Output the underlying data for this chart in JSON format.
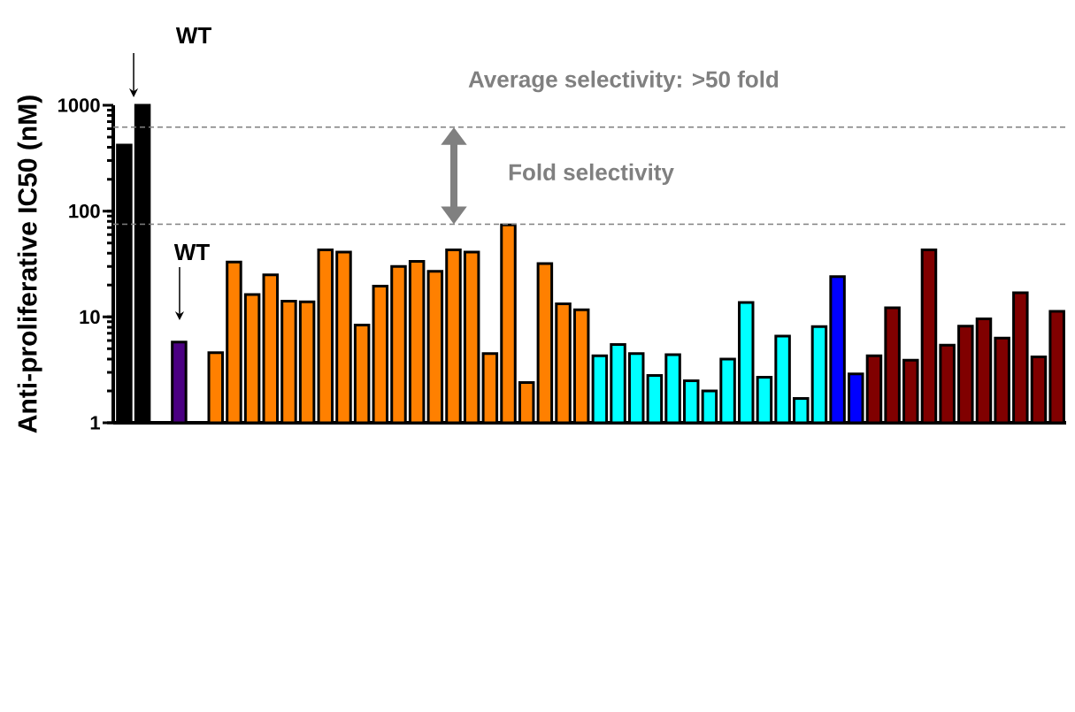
{
  "chart_data": {
    "type": "bar",
    "ylabel": "Anti-proliferative IC50 (nM)",
    "categories": [
      null,
      null,
      null,
      null,
      null,
      null,
      null,
      null,
      null,
      null,
      null,
      null,
      null,
      null,
      null,
      null,
      null,
      null,
      null,
      null,
      null,
      null,
      null,
      null,
      null,
      null,
      null,
      null,
      null,
      null,
      null,
      null,
      null,
      null,
      null,
      null,
      null,
      null,
      null,
      null,
      null,
      null,
      null,
      null,
      null,
      null,
      null,
      null,
      null,
      null,
      null,
      null
    ],
    "values": [
      420,
      1000,
      null,
      5.8,
      null,
      4.6,
      33,
      16.3,
      25,
      14.1,
      13.9,
      43,
      41,
      8.4,
      19.5,
      30,
      33.5,
      27,
      43,
      41,
      4.5,
      74,
      2.4,
      32,
      13.3,
      11.7,
      4.3,
      5.5,
      4.5,
      2.8,
      4.4,
      2.5,
      2,
      4,
      13.7,
      2.7,
      6.6,
      1.7,
      8.1,
      24,
      2.9,
      4.3,
      12.2,
      3.9,
      43,
      5.4,
      8.2,
      9.6,
      6.3,
      16.9,
      4.2,
      11.3
    ],
    "colors": [
      "#000000",
      "#000000",
      null,
      "#4b0082",
      null,
      "#ff8000",
      "#ff8000",
      "#ff8000",
      "#ff8000",
      "#ff8000",
      "#ff8000",
      "#ff8000",
      "#ff8000",
      "#ff8000",
      "#ff8000",
      "#ff8000",
      "#ff8000",
      "#ff8000",
      "#ff8000",
      "#ff8000",
      "#ff8000",
      "#ff8000",
      "#ff8000",
      "#ff8000",
      "#ff8000",
      "#ff8000",
      "#00ffff",
      "#00ffff",
      "#00ffff",
      "#00ffff",
      "#00ffff",
      "#00ffff",
      "#00ffff",
      "#00ffff",
      "#00ffff",
      "#00ffff",
      "#00ffff",
      "#00ffff",
      "#00ffff",
      "#0000ff",
      "#0000ff",
      "#800000",
      "#800000",
      "#800000",
      "#800000",
      "#800000",
      "#800000",
      "#800000",
      "#800000",
      "#800000",
      "#800000",
      "#800000"
    ],
    "log": true,
    "ylim": [
      1,
      1000
    ],
    "yticks": [
      1,
      10,
      100,
      1000
    ],
    "tick_labels": "y",
    "ref_lines": [
      {
        "axis": "y",
        "value": 620,
        "color": "#808080",
        "line_style": "dashed"
      },
      {
        "axis": "y",
        "value": 75,
        "color": "#808080",
        "line_style": "dashed"
      }
    ],
    "annotations": [
      "WT",
      "WT",
      "Average selectivity: >50 fold",
      "Fold selectivity"
    ]
  }
}
